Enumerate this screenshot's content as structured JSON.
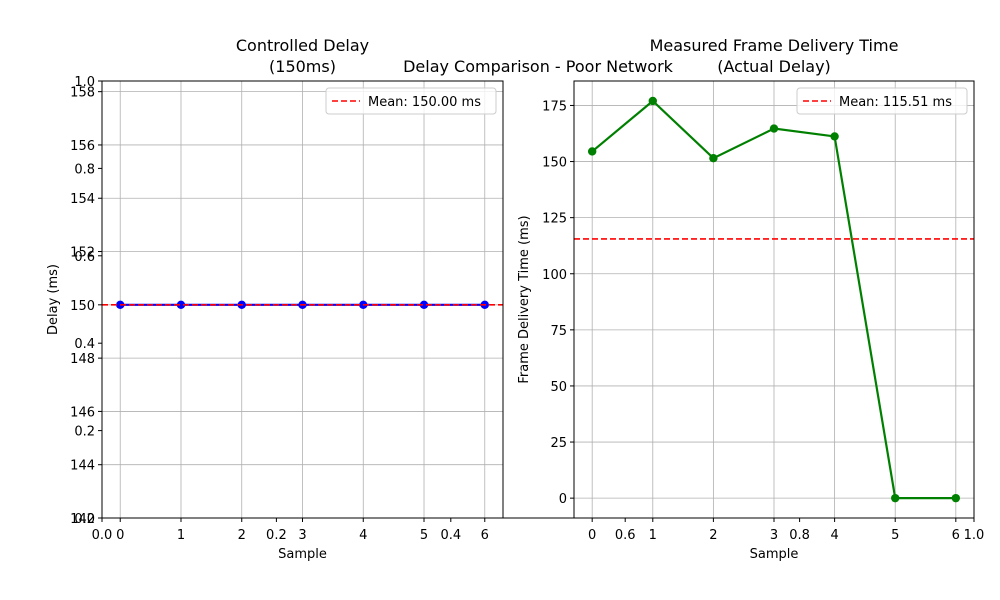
{
  "figure": {
    "suptitle": "Delay Comparison - Poor Network",
    "background_axes": {
      "x_ticks": [
        "0.0",
        "0.2",
        "0.4",
        "0.6",
        "0.8",
        "1.0"
      ],
      "y_ticks": [
        "0.0",
        "0.2",
        "0.4",
        "0.6",
        "0.8",
        "1.0"
      ]
    }
  },
  "chart_data": [
    {
      "type": "line",
      "title": "Controlled Delay\n(150ms)",
      "xlabel": "Sample",
      "ylabel": "Delay (ms)",
      "x": [
        0,
        1,
        2,
        3,
        4,
        5,
        6
      ],
      "series": [
        {
          "name": "",
          "values": [
            150,
            150,
            150,
            150,
            150,
            150,
            150
          ],
          "color": "#0000ff",
          "marker": "circle"
        }
      ],
      "reference_line": {
        "label": "Mean: 150.00 ms",
        "value": 150.0,
        "color": "#ff0000",
        "style": "dashed"
      },
      "xlim": [
        -0.3,
        6.3
      ],
      "ylim": [
        142,
        158.4
      ],
      "x_ticks": [
        "0",
        "1",
        "2",
        "3",
        "4",
        "5",
        "6"
      ],
      "y_ticks": [
        "142",
        "144",
        "146",
        "148",
        "150",
        "152",
        "154",
        "156",
        "158"
      ],
      "grid": true,
      "legend": "top-right"
    },
    {
      "type": "line",
      "title": "Measured Frame Delivery Time\n(Actual Delay)",
      "xlabel": "Sample",
      "ylabel": "Frame Delivery Time (ms)",
      "x": [
        0,
        1,
        2,
        3,
        4,
        5,
        6
      ],
      "series": [
        {
          "name": "",
          "values": [
            154.5,
            177.0,
            151.5,
            164.7,
            161.2,
            0.0,
            0.0
          ],
          "color": "#008000",
          "marker": "circle"
        }
      ],
      "reference_line": {
        "label": "Mean: 115.51 ms",
        "value": 115.51,
        "color": "#ff0000",
        "style": "dashed"
      },
      "xlim": [
        -0.3,
        6.3
      ],
      "ylim": [
        -8.85,
        185.9
      ],
      "x_ticks": [
        "0",
        "1",
        "2",
        "3",
        "4",
        "5",
        "6"
      ],
      "y_ticks": [
        "0",
        "25",
        "50",
        "75",
        "100",
        "125",
        "150",
        "175"
      ],
      "grid": true,
      "legend": "top-right"
    }
  ]
}
